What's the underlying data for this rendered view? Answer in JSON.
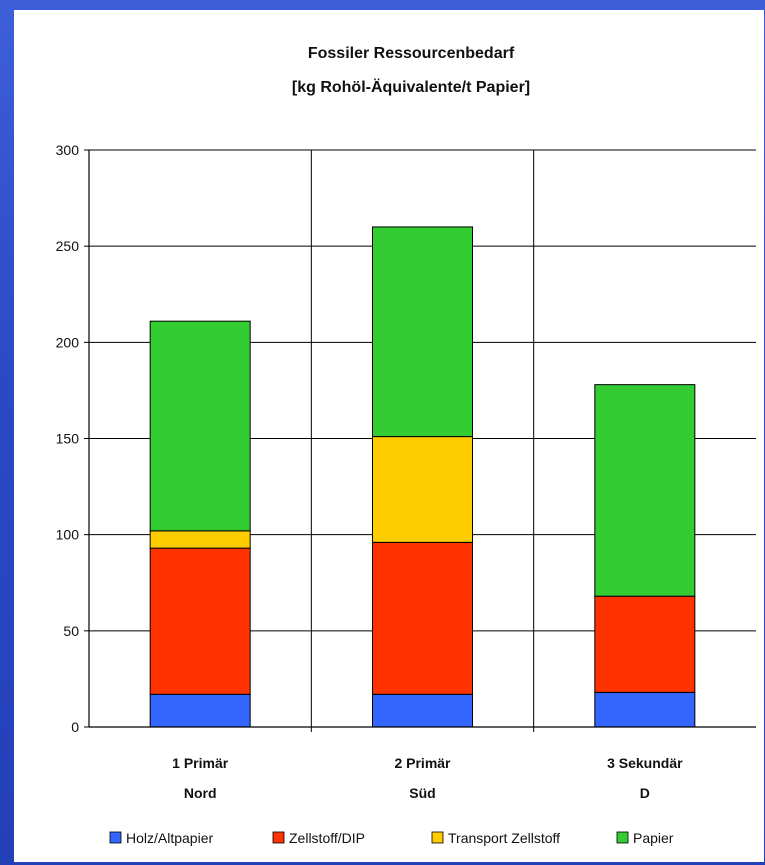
{
  "chart_data": {
    "type": "bar",
    "stacked": true,
    "title": [
      "Fossiler Ressourcenbedarf",
      "[kg Rohöl-Äquivalente/t Papier]"
    ],
    "categories": [
      [
        "1 Primär",
        "Nord"
      ],
      [
        "2 Primär",
        "Süd"
      ],
      [
        "3 Sekundär",
        "D"
      ]
    ],
    "series": [
      {
        "name": "Holz/Altpapier",
        "color": "#3366ff",
        "values": [
          17,
          17,
          18
        ]
      },
      {
        "name": "Zellstoff/DIP",
        "color": "#ff3300",
        "values": [
          76,
          79,
          50
        ]
      },
      {
        "name": "Transport Zellstoff",
        "color": "#ffcc00",
        "values": [
          9,
          55,
          0
        ]
      },
      {
        "name": "Papier",
        "color": "#33cc33",
        "values": [
          109,
          109,
          110
        ]
      }
    ],
    "yticks": [
      "0",
      "50",
      "100",
      "150",
      "200",
      "250",
      "300"
    ],
    "ylim": [
      0,
      300
    ],
    "grid": true,
    "legend_position": "bottom"
  }
}
